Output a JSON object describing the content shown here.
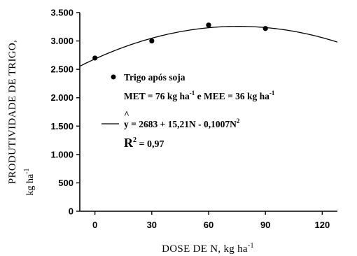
{
  "chart_data": {
    "type": "scatter",
    "x_axis": {
      "label": "DOSE DE N, kg ha",
      "label_sup": "-1",
      "ticks": [
        0,
        30,
        60,
        90,
        120
      ],
      "tick_labels": [
        "0",
        "30",
        "60",
        "90",
        "120"
      ],
      "range": [
        -8,
        128
      ]
    },
    "y_axis": {
      "label_line1": "PRODUTIVIDADE DE TRIGO,",
      "label_line2": "kg ha",
      "label_sup": "-1",
      "ticks": [
        0,
        500,
        1000,
        1500,
        2000,
        2500,
        3000,
        3500
      ],
      "tick_labels": [
        "0",
        "500",
        "1.000",
        "1.500",
        "2.000",
        "2.500",
        "3.000",
        "3.500"
      ],
      "range": [
        0,
        3500
      ]
    },
    "series": [
      {
        "name": "Trigo após soja",
        "points": [
          {
            "x": 0,
            "y": 2700
          },
          {
            "x": 30,
            "y": 3000
          },
          {
            "x": 60,
            "y": 3280
          },
          {
            "x": 90,
            "y": 3220
          }
        ]
      }
    ],
    "fit": {
      "type": "quadratic",
      "a": 2683,
      "b": 15.21,
      "c": -0.1007,
      "x_range": [
        -8,
        128
      ]
    },
    "legend": {
      "series_label": "Trigo após soja",
      "met_text": "MET = 76 kg ha",
      "met_sup": "-1",
      "met_join": " e MEE = 36 kg ha",
      "mee_sup": "-1",
      "eq_hat": "^",
      "eq_y": "y",
      "eq_text": " = 2683 + 15,21N - 0,1007N",
      "eq_sup": "2",
      "r2_R": "R",
      "r2_sup": "2",
      "r2_val": " = 0,97"
    },
    "grid": false
  }
}
